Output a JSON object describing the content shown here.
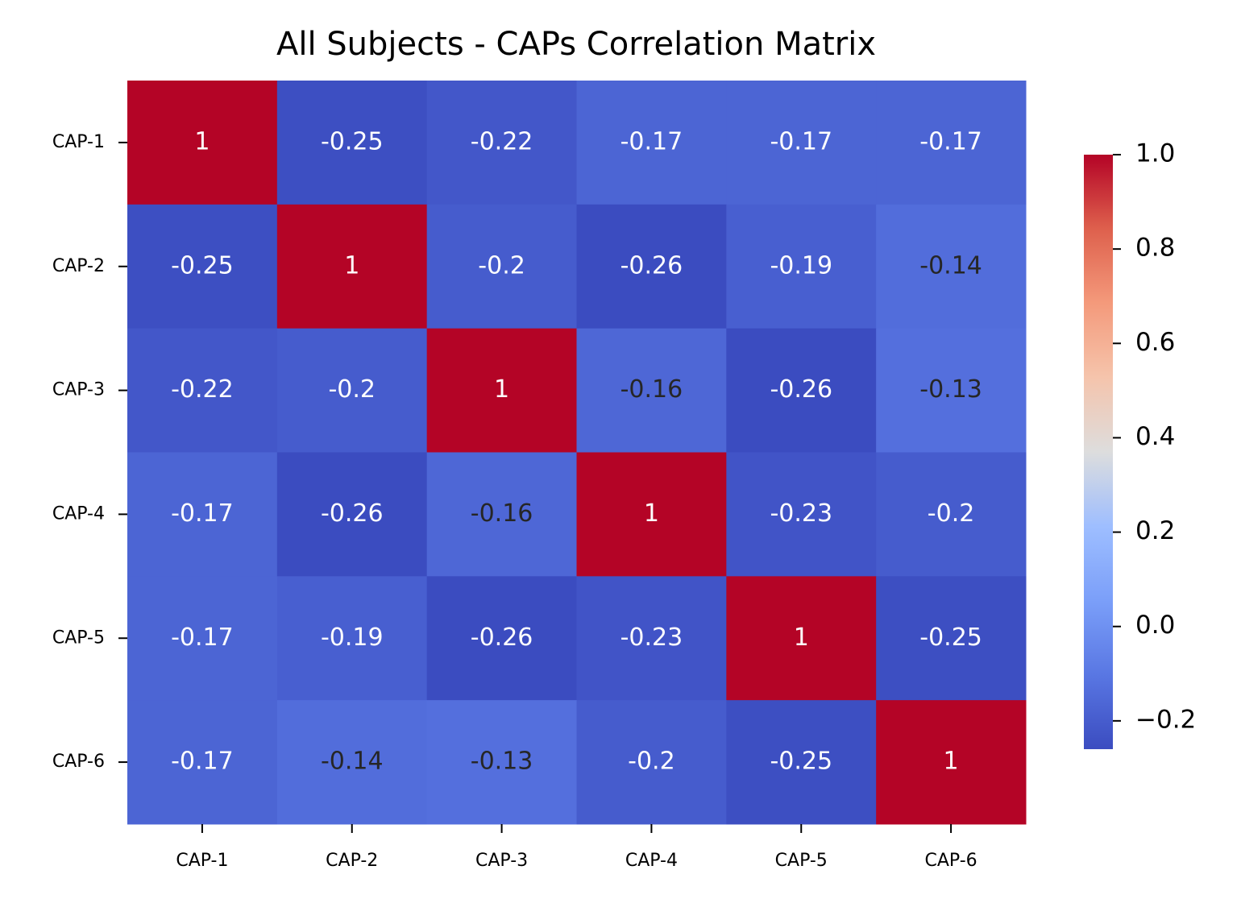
{
  "chart_data": {
    "type": "heatmap",
    "title": "All Subjects - CAPs Correlation Matrix",
    "x_labels": [
      "CAP-1",
      "CAP-2",
      "CAP-3",
      "CAP-4",
      "CAP-5",
      "CAP-6"
    ],
    "y_labels": [
      "CAP-1",
      "CAP-2",
      "CAP-3",
      "CAP-4",
      "CAP-5",
      "CAP-6"
    ],
    "values": [
      [
        1,
        -0.25,
        -0.22,
        -0.17,
        -0.17,
        -0.17
      ],
      [
        -0.25,
        1,
        -0.2,
        -0.26,
        -0.19,
        -0.14
      ],
      [
        -0.22,
        -0.2,
        1,
        -0.16,
        -0.26,
        -0.13
      ],
      [
        -0.17,
        -0.26,
        -0.16,
        1,
        -0.23,
        -0.2
      ],
      [
        -0.17,
        -0.19,
        -0.26,
        -0.23,
        1,
        -0.25
      ],
      [
        -0.17,
        -0.14,
        -0.13,
        -0.2,
        -0.25,
        1
      ]
    ],
    "colormap": "coolwarm",
    "zlim": [
      -0.26,
      1
    ],
    "zticks": [
      {
        "value": -0.2,
        "label": "−0.2"
      },
      {
        "value": 0,
        "label": "0.0"
      },
      0.2,
      0.4,
      0.6,
      0.8,
      {
        "value": 1,
        "label": "1.0"
      }
    ]
  }
}
